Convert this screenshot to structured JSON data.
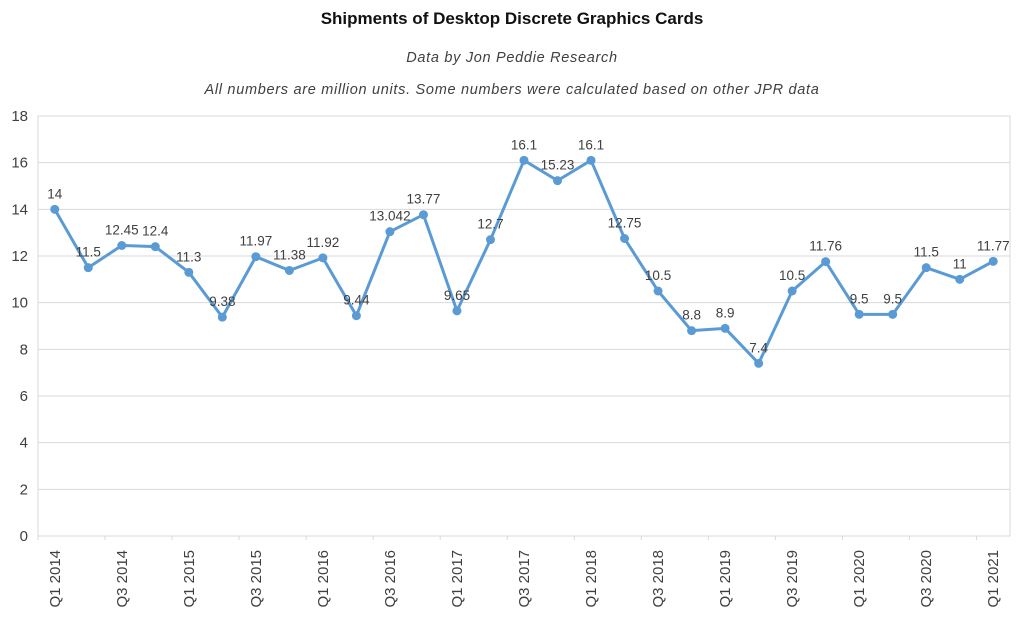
{
  "header": {
    "title": "Shipments of Desktop Discrete Graphics Cards",
    "subtitle1": "Data by Jon Peddie Research",
    "subtitle2": "All numbers are million units. Some numbers were calculated based on other JPR data"
  },
  "chart_data": {
    "type": "line",
    "title": "Shipments of Desktop Discrete Graphics Cards",
    "xlabel": "",
    "ylabel": "",
    "x": [
      "Q1 2014",
      "Q2 2014",
      "Q3 2014",
      "Q4 2014",
      "Q1 2015",
      "Q2 2015",
      "Q3 2015",
      "Q4 2015",
      "Q1 2016",
      "Q2 2016",
      "Q3 2016",
      "Q4 2016",
      "Q1 2017",
      "Q2 2017",
      "Q3 2017",
      "Q4 2017",
      "Q1 2018",
      "Q2 2018",
      "Q3 2018",
      "Q4 2018",
      "Q1 2019",
      "Q2 2019",
      "Q3 2019",
      "Q4 2019",
      "Q1 2020",
      "Q2 2020",
      "Q3 2020",
      "Q4 2020",
      "Q1 2021"
    ],
    "values": [
      14,
      11.5,
      12.45,
      12.4,
      11.3,
      9.38,
      11.97,
      11.38,
      11.92,
      9.44,
      13.042,
      13.77,
      9.65,
      12.7,
      16.1,
      15.23,
      16.1,
      12.75,
      10.5,
      8.8,
      8.9,
      7.4,
      10.5,
      11.76,
      9.5,
      9.5,
      11.5,
      11,
      11.77
    ],
    "labels": [
      "14",
      "11.5",
      "12.45",
      "12.4",
      "11.3",
      "9.38",
      "11.97",
      "11.38",
      "11.92",
      "9.44",
      "13.042",
      "13.77",
      "9.65",
      "12.7",
      "16.1",
      "15.23",
      "16.1",
      "12.75",
      "10.5",
      "8.8",
      "8.9",
      "7.4",
      "10.5",
      "11.76",
      "9.5",
      "9.5",
      "11.5",
      "11",
      "11.77"
    ],
    "x_tick_labels_shown": [
      "Q1 2014",
      "Q3 2014",
      "Q1 2015",
      "Q3 2015",
      "Q1 2016",
      "Q3 2016",
      "Q1 2017",
      "Q3 2017",
      "Q1 2018",
      "Q3 2018",
      "Q1 2019",
      "Q3 2019",
      "Q1 2020",
      "Q3 2020",
      "Q1 2021"
    ],
    "x_label_interval": 2,
    "ylim": [
      0,
      18
    ],
    "yticks": [
      0,
      2,
      4,
      6,
      8,
      10,
      12,
      14,
      16,
      18
    ],
    "grid": true,
    "legend": "none",
    "colors": {
      "line": "#5b9bd5",
      "grid": "#d9d9d9",
      "axis_text": "#404040",
      "label_text": "#404040"
    }
  }
}
